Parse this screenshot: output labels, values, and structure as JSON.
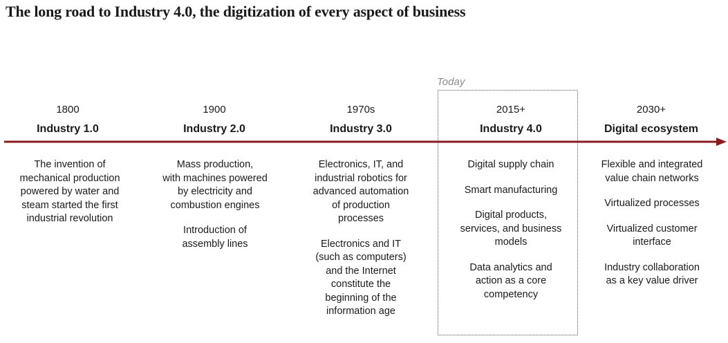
{
  "title": "The long road to Industry 4.0, the digitization of every aspect of business",
  "today_label": "Today",
  "accent_color": "#8b1a1e",
  "stages": [
    {
      "year": "1800",
      "name": "Industry 1.0",
      "descriptions": [
        [
          "The invention of",
          "mechanical production",
          "powered by water and",
          "steam started the first",
          "industrial revolution"
        ]
      ]
    },
    {
      "year": "1900",
      "name": "Industry 2.0",
      "descriptions": [
        [
          "Mass production,",
          "with machines powered",
          "by electricity and",
          "combustion engines"
        ],
        [
          "Introduction of",
          "assembly lines"
        ]
      ]
    },
    {
      "year": "1970s",
      "name": "Industry 3.0",
      "descriptions": [
        [
          "Electronics, IT, and",
          "industrial robotics for",
          "advanced automation",
          "of production",
          "processes"
        ],
        [
          "Electronics and IT",
          "(such as computers)",
          "and the Internet",
          "constitute the",
          "beginning of the",
          "information age"
        ]
      ]
    },
    {
      "year": "2015+",
      "name": "Industry 4.0",
      "descriptions": [
        [
          "Digital supply chain"
        ],
        [
          "Smart manufacturing"
        ],
        [
          "Digital products,",
          "services, and business",
          "models"
        ],
        [
          "Data analytics and",
          "action as a core",
          "competency"
        ]
      ]
    },
    {
      "year": "2030+",
      "name": "Digital ecosystem",
      "descriptions": [
        [
          "Flexible and integrated",
          "value chain networks"
        ],
        [
          "Virtualized processes"
        ],
        [
          "Virtualized customer",
          "interface"
        ],
        [
          "Industry collaboration",
          "as a key value driver"
        ]
      ]
    }
  ]
}
